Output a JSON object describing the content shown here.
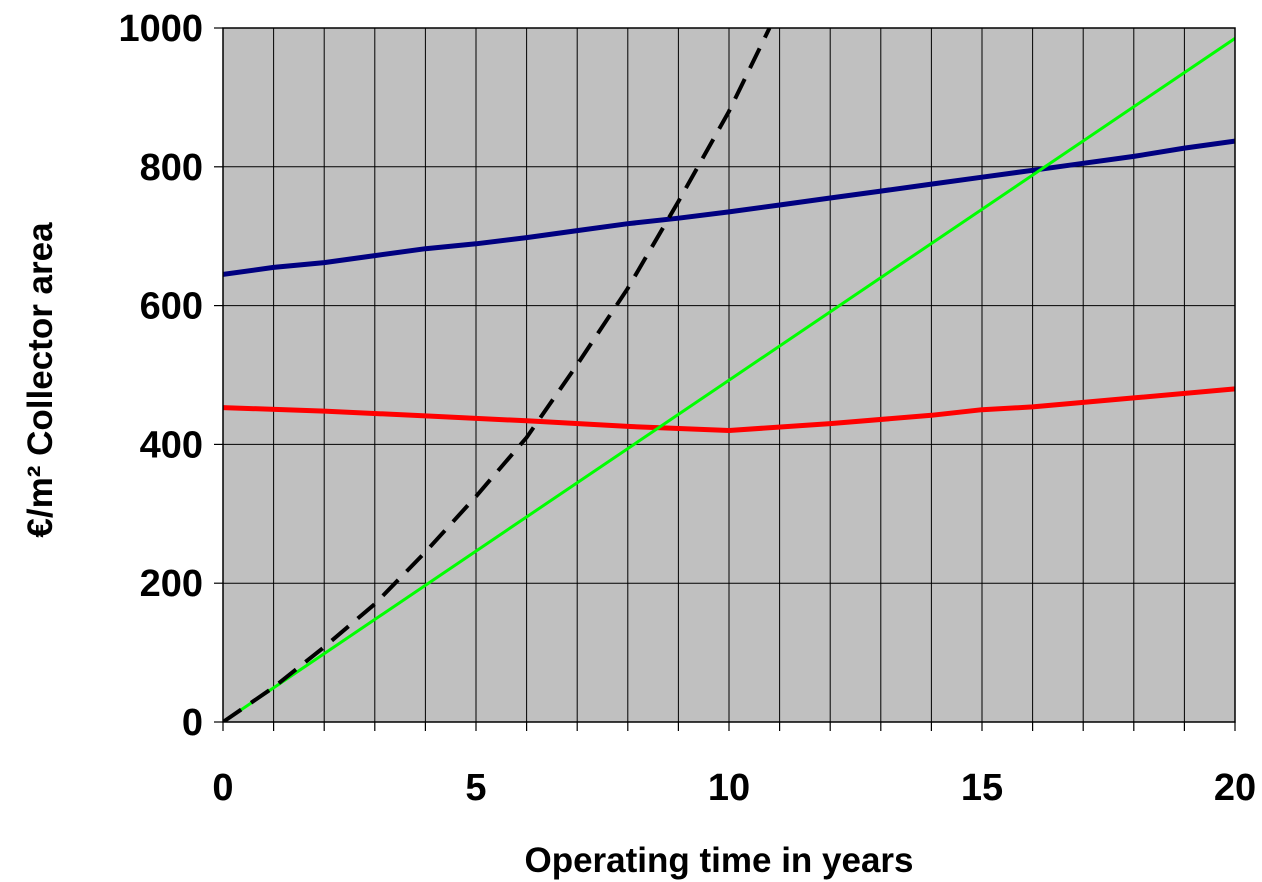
{
  "chart_data": {
    "type": "line",
    "xlabel": "Operating time in years",
    "ylabel": "€/m² Collector area",
    "xlim": [
      0,
      20
    ],
    "ylim": [
      0,
      1000
    ],
    "x_ticks": [
      0,
      5,
      10,
      15,
      20
    ],
    "y_ticks": [
      0,
      200,
      400,
      600,
      800,
      1000
    ],
    "x_minor_step": 1,
    "grid": {
      "vertical": true,
      "horizontal": true
    },
    "plot_background": "#c0c0c0",
    "series": [
      {
        "color": "#000080",
        "style": "solid",
        "points": [
          [
            0,
            645
          ],
          [
            1,
            655
          ],
          [
            2,
            662
          ],
          [
            3,
            672
          ],
          [
            4,
            682
          ],
          [
            5,
            689
          ],
          [
            6,
            698
          ],
          [
            7,
            708
          ],
          [
            8,
            718
          ],
          [
            9,
            726
          ],
          [
            10,
            735
          ],
          [
            11,
            745
          ],
          [
            12,
            755
          ],
          [
            13,
            765
          ],
          [
            14,
            775
          ],
          [
            15,
            785
          ],
          [
            16,
            795
          ],
          [
            17,
            805
          ],
          [
            18,
            815
          ],
          [
            19,
            827
          ],
          [
            20,
            837
          ]
        ]
      },
      {
        "color": "#ff0000",
        "style": "solid",
        "points": [
          [
            0,
            453
          ],
          [
            2,
            448
          ],
          [
            4,
            441
          ],
          [
            6,
            434
          ],
          [
            8,
            426
          ],
          [
            10,
            420
          ],
          [
            12,
            430
          ],
          [
            14,
            442
          ],
          [
            15,
            450
          ],
          [
            16,
            454
          ],
          [
            18,
            467
          ],
          [
            20,
            480
          ]
        ]
      },
      {
        "color": "#00ff00",
        "style": "solid",
        "points": [
          [
            0,
            0
          ],
          [
            20,
            985
          ]
        ]
      },
      {
        "color": "#000000",
        "style": "dashed",
        "points": [
          [
            0,
            0
          ],
          [
            1,
            50
          ],
          [
            2,
            108
          ],
          [
            3,
            170
          ],
          [
            4,
            245
          ],
          [
            5,
            325
          ],
          [
            6,
            410
          ],
          [
            7,
            515
          ],
          [
            8,
            625
          ],
          [
            9,
            750
          ],
          [
            10,
            880
          ],
          [
            10.8,
            1000
          ]
        ]
      }
    ]
  }
}
